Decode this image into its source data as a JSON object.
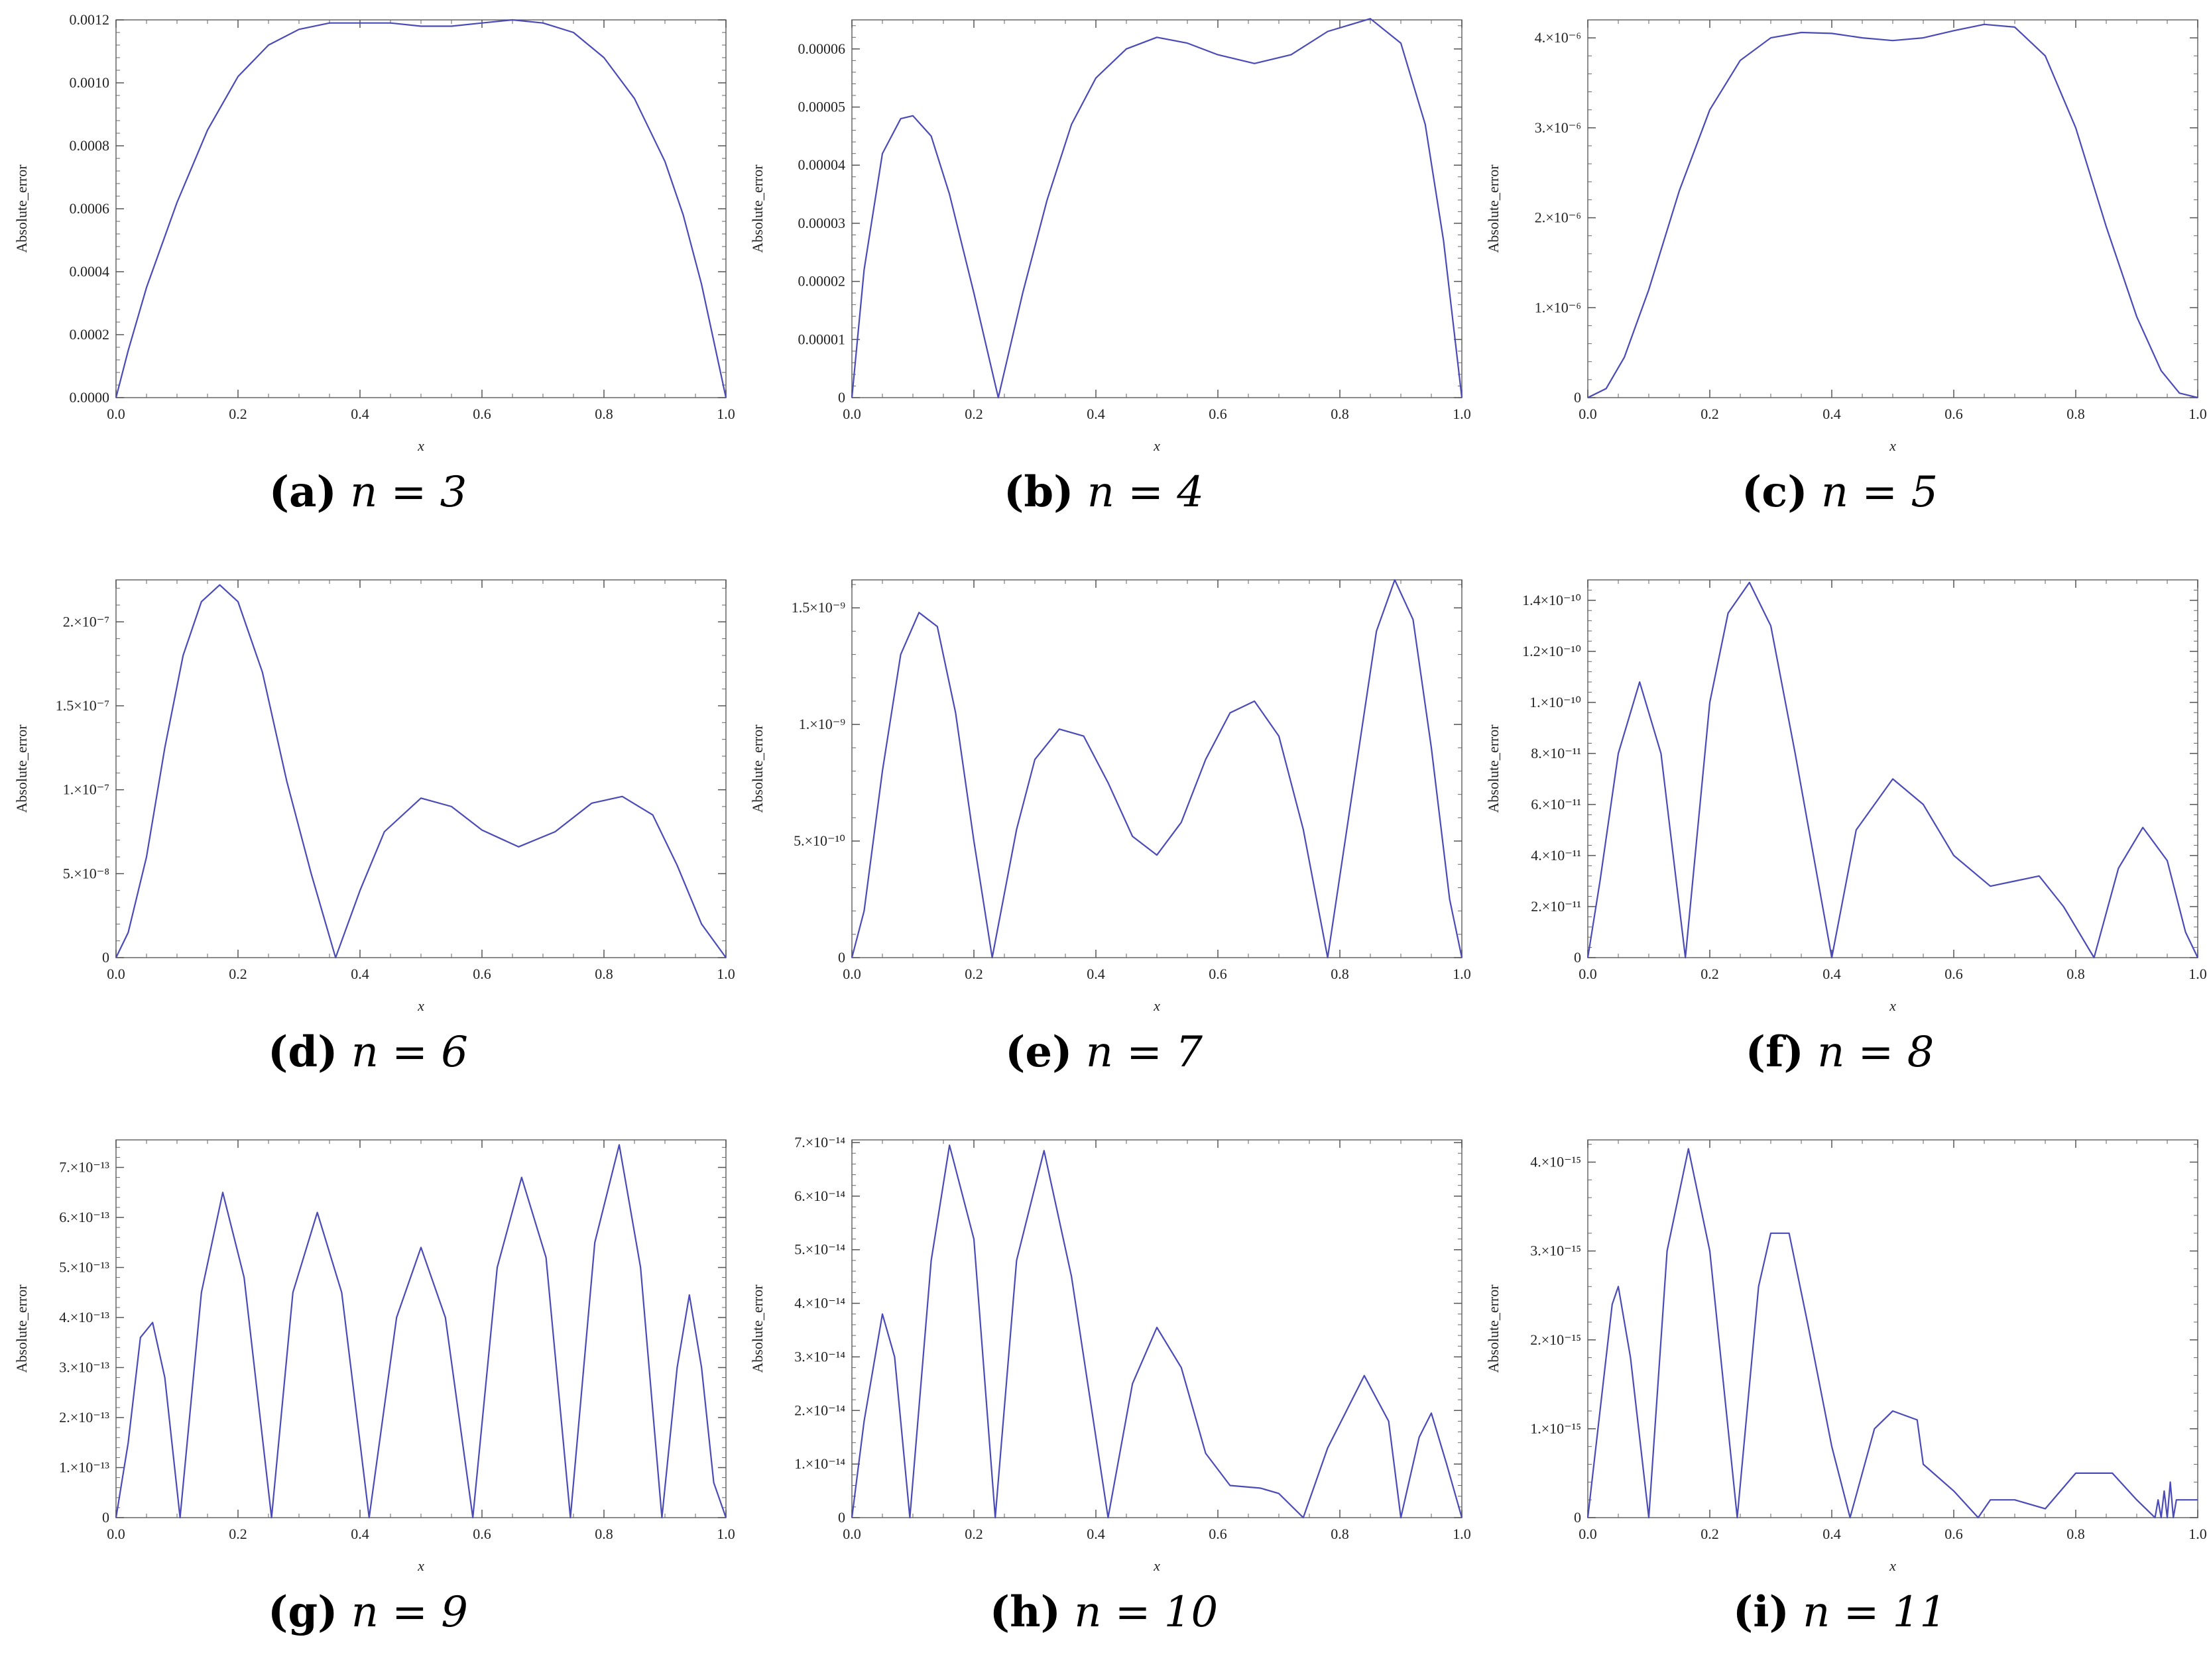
{
  "panels": [
    {
      "caption": {
        "label": "(a)",
        "text": "n = 3"
      },
      "chart_data": {
        "type": "line",
        "xlabel": "x",
        "ylabel": "Absolute_error",
        "xlim": [
          0,
          1
        ],
        "ylim": [
          0,
          0.0012
        ],
        "xticks": [
          0.0,
          0.2,
          0.4,
          0.6,
          0.8,
          1.0
        ],
        "xtick_labels": [
          "0.0",
          "0.2",
          "0.4",
          "0.6",
          "0.8",
          "1.0"
        ],
        "yticks": [
          0,
          0.0002,
          0.0004,
          0.0006,
          0.0008,
          0.001,
          0.0012
        ],
        "ytick_labels": [
          "0.0000",
          "0.0002",
          "0.0004",
          "0.0006",
          "0.0008",
          "0.0010",
          "0.0012"
        ],
        "color": "#4a4ab8",
        "series": [
          {
            "x": [
              0,
              0.02,
              0.05,
              0.1,
              0.15,
              0.2,
              0.25,
              0.3,
              0.35,
              0.4,
              0.45,
              0.5,
              0.55,
              0.6,
              0.65,
              0.7,
              0.75,
              0.8,
              0.85,
              0.9,
              0.93,
              0.96,
              0.98,
              1.0
            ],
            "y": [
              0,
              0.00015,
              0.00035,
              0.00062,
              0.00085,
              0.00102,
              0.00112,
              0.00117,
              0.00119,
              0.00119,
              0.00119,
              0.00118,
              0.00118,
              0.00119,
              0.0012,
              0.00119,
              0.00116,
              0.00108,
              0.00095,
              0.00075,
              0.00058,
              0.00036,
              0.00018,
              0
            ]
          }
        ]
      }
    },
    {
      "caption": {
        "label": "(b)",
        "text": "n = 4"
      },
      "chart_data": {
        "type": "line",
        "xlabel": "x",
        "ylabel": "Absolute_error",
        "xlim": [
          0,
          1
        ],
        "ylim": [
          0,
          6.5e-05
        ],
        "xticks": [
          0.0,
          0.2,
          0.4,
          0.6,
          0.8,
          1.0
        ],
        "xtick_labels": [
          "0.0",
          "0.2",
          "0.4",
          "0.6",
          "0.8",
          "1.0"
        ],
        "yticks": [
          0,
          1e-05,
          2e-05,
          3e-05,
          4e-05,
          5e-05,
          6e-05
        ],
        "ytick_labels": [
          "0",
          "0.00001",
          "0.00002",
          "0.00003",
          "0.00004",
          "0.00005",
          "0.00006"
        ],
        "color": "#4a4ab8",
        "series": [
          {
            "x": [
              0,
              0.02,
              0.05,
              0.08,
              0.1,
              0.13,
              0.16,
              0.2,
              0.24,
              0.28,
              0.32,
              0.36,
              0.4,
              0.45,
              0.5,
              0.55,
              0.6,
              0.66,
              0.72,
              0.78,
              0.85,
              0.9,
              0.94,
              0.97,
              1.0
            ],
            "y": [
              0,
              2.2e-05,
              4.2e-05,
              4.8e-05,
              4.85e-05,
              4.5e-05,
              3.5e-05,
              1.8e-05,
              0,
              1.8e-05,
              3.4e-05,
              4.7e-05,
              5.5e-05,
              6e-05,
              6.2e-05,
              6.1e-05,
              5.9e-05,
              5.75e-05,
              5.9e-05,
              6.3e-05,
              6.52e-05,
              6.1e-05,
              4.7e-05,
              2.7e-05,
              0
            ]
          }
        ]
      }
    },
    {
      "caption": {
        "label": "(c)",
        "text": "n = 5"
      },
      "chart_data": {
        "type": "line",
        "xlabel": "x",
        "ylabel": "Absolute_error",
        "xlim": [
          0,
          1
        ],
        "ylim": [
          0,
          4.2e-06
        ],
        "xticks": [
          0.0,
          0.2,
          0.4,
          0.6,
          0.8,
          1.0
        ],
        "xtick_labels": [
          "0.0",
          "0.2",
          "0.4",
          "0.6",
          "0.8",
          "1.0"
        ],
        "yticks": [
          0,
          1e-06,
          2e-06,
          3e-06,
          4e-06
        ],
        "ytick_labels": [
          "0",
          "1.×10⁻⁶",
          "2.×10⁻⁶",
          "3.×10⁻⁶",
          "4.×10⁻⁶"
        ],
        "color": "#4a4ab8",
        "series": [
          {
            "x": [
              0,
              0.03,
              0.06,
              0.1,
              0.15,
              0.2,
              0.25,
              0.3,
              0.35,
              0.4,
              0.45,
              0.5,
              0.55,
              0.6,
              0.65,
              0.7,
              0.75,
              0.8,
              0.85,
              0.9,
              0.94,
              0.97,
              1.0
            ],
            "y": [
              0,
              1e-07,
              4.5e-07,
              1.2e-06,
              2.3e-06,
              3.2e-06,
              3.75e-06,
              4e-06,
              4.06e-06,
              4.05e-06,
              4e-06,
              3.97e-06,
              4e-06,
              4.08e-06,
              4.15e-06,
              4.12e-06,
              3.8e-06,
              3e-06,
              1.9e-06,
              9e-07,
              3e-07,
              5e-08,
              0
            ]
          }
        ]
      }
    },
    {
      "caption": {
        "label": "(d)",
        "text": "n = 6"
      },
      "chart_data": {
        "type": "line",
        "xlabel": "x",
        "ylabel": "Absolute_error",
        "xlim": [
          0,
          1
        ],
        "ylim": [
          0,
          2.25e-07
        ],
        "xticks": [
          0.0,
          0.2,
          0.4,
          0.6,
          0.8,
          1.0
        ],
        "xtick_labels": [
          "0.0",
          "0.2",
          "0.4",
          "0.6",
          "0.8",
          "1.0"
        ],
        "yticks": [
          0,
          5e-08,
          1e-07,
          1.5e-07,
          2e-07
        ],
        "ytick_labels": [
          "0",
          "5.×10⁻⁸",
          "1.×10⁻⁷",
          "1.5×10⁻⁷",
          "2.×10⁻⁷"
        ],
        "color": "#4a4ab8",
        "series": [
          {
            "x": [
              0,
              0.02,
              0.05,
              0.08,
              0.11,
              0.14,
              0.17,
              0.2,
              0.24,
              0.28,
              0.32,
              0.36,
              0.4,
              0.44,
              0.5,
              0.55,
              0.6,
              0.66,
              0.72,
              0.78,
              0.83,
              0.88,
              0.92,
              0.96,
              1.0
            ],
            "y": [
              0,
              1.5e-08,
              6e-08,
              1.25e-07,
              1.8e-07,
              2.12e-07,
              2.22e-07,
              2.12e-07,
              1.7e-07,
              1.05e-07,
              5e-08,
              0,
              4e-08,
              7.5e-08,
              9.5e-08,
              9e-08,
              7.6e-08,
              6.6e-08,
              7.5e-08,
              9.2e-08,
              9.6e-08,
              8.5e-08,
              5.5e-08,
              2e-08,
              0
            ]
          }
        ]
      }
    },
    {
      "caption": {
        "label": "(e)",
        "text": "n = 7"
      },
      "chart_data": {
        "type": "line",
        "xlabel": "x",
        "ylabel": "Absolute_error",
        "xlim": [
          0,
          1
        ],
        "ylim": [
          0,
          1.62e-09
        ],
        "xticks": [
          0.0,
          0.2,
          0.4,
          0.6,
          0.8,
          1.0
        ],
        "xtick_labels": [
          "0.0",
          "0.2",
          "0.4",
          "0.6",
          "0.8",
          "1.0"
        ],
        "yticks": [
          0,
          5e-10,
          1e-09,
          1.5e-09
        ],
        "ytick_labels": [
          "0",
          "5.×10⁻¹⁰",
          "1.×10⁻⁹",
          "1.5×10⁻⁹"
        ],
        "color": "#4a4ab8",
        "series": [
          {
            "x": [
              0,
              0.02,
              0.05,
              0.08,
              0.11,
              0.14,
              0.17,
              0.2,
              0.23,
              0.27,
              0.3,
              0.34,
              0.38,
              0.42,
              0.46,
              0.5,
              0.54,
              0.58,
              0.62,
              0.66,
              0.7,
              0.74,
              0.78,
              0.82,
              0.86,
              0.89,
              0.92,
              0.95,
              0.98,
              1.0
            ],
            "y": [
              0,
              2e-10,
              8e-10,
              1.3e-09,
              1.48e-09,
              1.42e-09,
              1.05e-09,
              5e-10,
              0,
              5.5e-10,
              8.5e-10,
              9.8e-10,
              9.5e-10,
              7.5e-10,
              5.2e-10,
              4.4e-10,
              5.8e-10,
              8.5e-10,
              1.05e-09,
              1.1e-09,
              9.5e-10,
              5.5e-10,
              0,
              7e-10,
              1.4e-09,
              1.62e-09,
              1.45e-09,
              9e-10,
              2.5e-10,
              0
            ]
          }
        ]
      }
    },
    {
      "caption": {
        "label": "(f)",
        "text": "n = 8"
      },
      "chart_data": {
        "type": "line",
        "xlabel": "x",
        "ylabel": "Absolute_error",
        "xlim": [
          0,
          1
        ],
        "ylim": [
          0,
          1.48e-10
        ],
        "xticks": [
          0.0,
          0.2,
          0.4,
          0.6,
          0.8,
          1.0
        ],
        "xtick_labels": [
          "0.0",
          "0.2",
          "0.4",
          "0.6",
          "0.8",
          "1.0"
        ],
        "yticks": [
          0,
          2e-11,
          4e-11,
          6e-11,
          8e-11,
          1e-10,
          1.2e-10,
          1.4e-10
        ],
        "ytick_labels": [
          "0",
          "2.×10⁻¹¹",
          "4.×10⁻¹¹",
          "6.×10⁻¹¹",
          "8.×10⁻¹¹",
          "1.×10⁻¹⁰",
          "1.2×10⁻¹⁰",
          "1.4×10⁻¹⁰"
        ],
        "color": "#4a4ab8",
        "series": [
          {
            "x": [
              0,
              0.02,
              0.05,
              0.085,
              0.12,
              0.16,
              0.2,
              0.23,
              0.265,
              0.3,
              0.34,
              0.4,
              0.44,
              0.5,
              0.55,
              0.6,
              0.66,
              0.7,
              0.74,
              0.78,
              0.83,
              0.87,
              0.91,
              0.95,
              0.98,
              1.0
            ],
            "y": [
              0,
              3e-11,
              8e-11,
              1.08e-10,
              8e-11,
              0,
              1e-10,
              1.35e-10,
              1.47e-10,
              1.3e-10,
              8e-11,
              0,
              5e-11,
              7e-11,
              6e-11,
              4e-11,
              2.8e-11,
              3e-11,
              3.2e-11,
              2e-11,
              0,
              3.5e-11,
              5.1e-11,
              3.8e-11,
              1e-11,
              0
            ]
          }
        ]
      }
    },
    {
      "caption": {
        "label": "(g)",
        "text": "n = 9"
      },
      "chart_data": {
        "type": "line",
        "xlabel": "x",
        "ylabel": "Absolute_error",
        "xlim": [
          0,
          1
        ],
        "ylim": [
          0,
          7.55e-13
        ],
        "xticks": [
          0.0,
          0.2,
          0.4,
          0.6,
          0.8,
          1.0
        ],
        "xtick_labels": [
          "0.0",
          "0.2",
          "0.4",
          "0.6",
          "0.8",
          "1.0"
        ],
        "yticks": [
          0,
          1e-13,
          2e-13,
          3e-13,
          4e-13,
          5e-13,
          6e-13,
          7e-13
        ],
        "ytick_labels": [
          "0",
          "1.×10⁻¹³",
          "2.×10⁻¹³",
          "3.×10⁻¹³",
          "4.×10⁻¹³",
          "5.×10⁻¹³",
          "6.×10⁻¹³",
          "7.×10⁻¹³"
        ],
        "color": "#4a4ab8",
        "series": [
          {
            "x": [
              0,
              0.02,
              0.04,
              0.06,
              0.08,
              0.105,
              0.14,
              0.175,
              0.21,
              0.255,
              0.29,
              0.33,
              0.37,
              0.415,
              0.46,
              0.5,
              0.54,
              0.585,
              0.625,
              0.665,
              0.705,
              0.745,
              0.785,
              0.825,
              0.86,
              0.895,
              0.92,
              0.94,
              0.96,
              0.98,
              1.0
            ],
            "y": [
              0,
              1.5e-13,
              3.6e-13,
              3.9e-13,
              2.8e-13,
              0,
              4.5e-13,
              6.5e-13,
              4.8e-13,
              0,
              4.5e-13,
              6.1e-13,
              4.5e-13,
              0,
              4e-13,
              5.4e-13,
              4e-13,
              0,
              5e-13,
              6.8e-13,
              5.2e-13,
              0,
              5.5e-13,
              7.45e-13,
              5e-13,
              0,
              3e-13,
              4.45e-13,
              3e-13,
              7e-14,
              0
            ]
          }
        ]
      }
    },
    {
      "caption": {
        "label": "(h)",
        "text": "n = 10"
      },
      "chart_data": {
        "type": "line",
        "xlabel": "x",
        "ylabel": "Absolute_error",
        "xlim": [
          0,
          1
        ],
        "ylim": [
          0,
          7.05e-14
        ],
        "xticks": [
          0.0,
          0.2,
          0.4,
          0.6,
          0.8,
          1.0
        ],
        "xtick_labels": [
          "0.0",
          "0.2",
          "0.4",
          "0.6",
          "0.8",
          "1.0"
        ],
        "yticks": [
          0,
          1e-14,
          2e-14,
          3e-14,
          4e-14,
          5e-14,
          6e-14,
          7e-14
        ],
        "ytick_labels": [
          "0",
          "1.×10⁻¹⁴",
          "2.×10⁻¹⁴",
          "3.×10⁻¹⁴",
          "4.×10⁻¹⁴",
          "5.×10⁻¹⁴",
          "6.×10⁻¹⁴",
          "7.×10⁻¹⁴"
        ],
        "color": "#4a4ab8",
        "series": [
          {
            "x": [
              0,
              0.02,
              0.05,
              0.07,
              0.095,
              0.13,
              0.16,
              0.2,
              0.235,
              0.27,
              0.315,
              0.36,
              0.42,
              0.46,
              0.5,
              0.54,
              0.58,
              0.62,
              0.67,
              0.7,
              0.74,
              0.78,
              0.84,
              0.88,
              0.9,
              0.93,
              0.95,
              0.975,
              1.0
            ],
            "y": [
              0,
              1.8e-14,
              3.8e-14,
              3e-14,
              0,
              4.8e-14,
              6.95e-14,
              5.2e-14,
              0,
              4.8e-14,
              6.85e-14,
              4.5e-14,
              0,
              2.5e-14,
              3.55e-14,
              2.8e-14,
              1.2e-14,
              6e-15,
              5.5e-15,
              4.5e-15,
              0,
              1.3e-14,
              2.65e-14,
              1.8e-14,
              0,
              1.5e-14,
              1.95e-14,
              1e-14,
              0
            ]
          }
        ]
      }
    },
    {
      "caption": {
        "label": "(i)",
        "text": "n = 11"
      },
      "chart_data": {
        "type": "line",
        "xlabel": "x",
        "ylabel": "Absolute_error",
        "xlim": [
          0,
          1
        ],
        "ylim": [
          0,
          4.25e-15
        ],
        "xticks": [
          0.0,
          0.2,
          0.4,
          0.6,
          0.8,
          1.0
        ],
        "xtick_labels": [
          "0.0",
          "0.2",
          "0.4",
          "0.6",
          "0.8",
          "1.0"
        ],
        "yticks": [
          0,
          1e-15,
          2e-15,
          3e-15,
          4e-15
        ],
        "ytick_labels": [
          "0",
          "1.×10⁻¹⁵",
          "2.×10⁻¹⁵",
          "3.×10⁻¹⁵",
          "4.×10⁻¹⁵"
        ],
        "color": "#4a4ab8",
        "series": [
          {
            "x": [
              0,
              0.02,
              0.04,
              0.05,
              0.07,
              0.1,
              0.13,
              0.165,
              0.2,
              0.245,
              0.28,
              0.3,
              0.33,
              0.36,
              0.4,
              0.43,
              0.47,
              0.5,
              0.54,
              0.55,
              0.6,
              0.64,
              0.66,
              0.7,
              0.75,
              0.8,
              0.86,
              0.9,
              0.93,
              0.935,
              0.94,
              0.945,
              0.95,
              0.955,
              0.96,
              0.965,
              0.97,
              0.975,
              1.0
            ],
            "y": [
              0,
              1.2e-15,
              2.4e-15,
              2.6e-15,
              1.8e-15,
              0,
              3e-15,
              4.15e-15,
              3e-15,
              0,
              2.6e-15,
              3.2e-15,
              3.2e-15,
              2.2e-15,
              8e-16,
              0,
              1e-15,
              1.2e-15,
              1.1e-15,
              6e-16,
              3e-16,
              0,
              2e-16,
              2e-16,
              1e-16,
              5e-16,
              5e-16,
              2e-16,
              0,
              2e-16,
              0,
              3e-16,
              0,
              4e-16,
              0,
              2e-16,
              2e-16,
              2e-16,
              2e-16
            ]
          }
        ]
      }
    }
  ]
}
